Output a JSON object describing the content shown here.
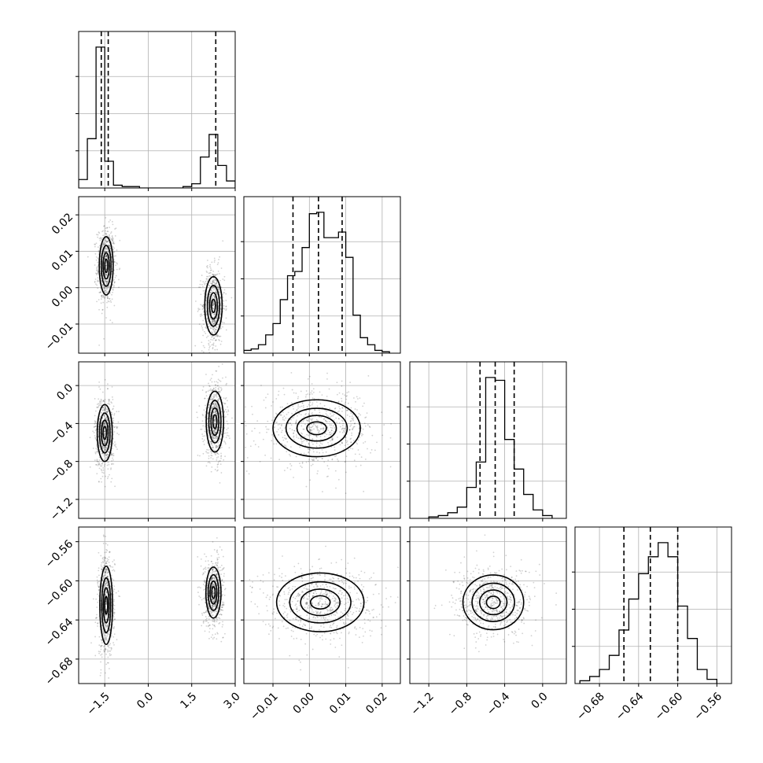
{
  "chart_data": {
    "type": "corner",
    "grid": true,
    "parameters": [
      {
        "range": [
          -2.4,
          3.0
        ],
        "ticks": [
          -1.5,
          0.0,
          1.5,
          3.0
        ],
        "tick_labels": [
          "−1.5",
          "0.0",
          "1.5",
          "3.0"
        ],
        "quantiles": [
          -1.62,
          -1.38,
          2.33
        ],
        "histogram": {
          "edges": [
            -2.4,
            -2.1,
            -1.8,
            -1.5,
            -1.2,
            -0.9,
            -0.6,
            -0.3,
            0.0,
            0.3,
            0.6,
            0.9,
            1.2,
            1.5,
            1.8,
            2.1,
            2.4,
            2.7,
            3.0
          ],
          "counts": [
            0.06,
            0.35,
            1.0,
            0.19,
            0.02,
            0.01,
            0.01,
            0.0,
            0.0,
            0.0,
            0.0,
            0.0,
            0.01,
            0.03,
            0.22,
            0.38,
            0.16,
            0.05
          ]
        }
      },
      {
        "range": [
          -0.018,
          0.025
        ],
        "ticks": [
          -0.01,
          0.0,
          0.01,
          0.02
        ],
        "tick_labels": [
          "−0.01",
          "0.00",
          "0.01",
          "0.02"
        ],
        "quantiles": [
          -0.0045,
          0.0025,
          0.009
        ],
        "histogram": {
          "edges": [
            -0.018,
            -0.016,
            -0.014,
            -0.012,
            -0.01,
            -0.008,
            -0.006,
            -0.004,
            -0.002,
            0.0,
            0.002,
            0.004,
            0.006,
            0.008,
            0.01,
            0.012,
            0.014,
            0.016,
            0.018,
            0.02,
            0.022
          ],
          "counts": [
            0.02,
            0.03,
            0.06,
            0.13,
            0.21,
            0.38,
            0.55,
            0.58,
            0.75,
            0.99,
            1.0,
            0.82,
            0.82,
            0.86,
            0.68,
            0.27,
            0.11,
            0.06,
            0.02,
            0.01
          ]
        }
      },
      {
        "range": [
          -1.4,
          0.25
        ],
        "ticks": [
          -1.2,
          -0.8,
          -0.4,
          0.0
        ],
        "tick_labels": [
          "−1.2",
          "−0.8",
          "−0.4",
          "0.0"
        ],
        "quantiles": [
          -0.66,
          -0.5,
          -0.3
        ],
        "histogram": {
          "edges": [
            -1.2,
            -1.1,
            -1.0,
            -0.9,
            -0.8,
            -0.7,
            -0.6,
            -0.5,
            -0.4,
            -0.3,
            -0.2,
            -0.1,
            0.0,
            0.1
          ],
          "counts": [
            0.01,
            0.02,
            0.04,
            0.08,
            0.22,
            0.4,
            1.0,
            0.98,
            0.56,
            0.35,
            0.17,
            0.06,
            0.02
          ]
        }
      },
      {
        "range": [
          -0.705,
          -0.545
        ],
        "ticks": [
          -0.68,
          -0.64,
          -0.6,
          -0.56
        ],
        "tick_labels": [
          "−0.68",
          "−0.64",
          "−0.60",
          "−0.56"
        ],
        "quantiles": [
          -0.655,
          -0.628,
          -0.6
        ],
        "histogram": {
          "edges": [
            -0.7,
            -0.69,
            -0.68,
            -0.67,
            -0.66,
            -0.65,
            -0.64,
            -0.63,
            -0.62,
            -0.61,
            -0.6,
            -0.59,
            -0.58,
            -0.57,
            -0.56
          ],
          "counts": [
            0.02,
            0.05,
            0.1,
            0.2,
            0.38,
            0.6,
            0.78,
            0.9,
            1.0,
            0.9,
            0.55,
            0.32,
            0.1,
            0.03
          ]
        }
      }
    ],
    "joint_modes": {
      "1-0": [
        {
          "center": [
            -1.45,
            0.006
          ],
          "sd": [
            0.12,
            0.004
          ]
        },
        {
          "center": [
            2.25,
            -0.005
          ],
          "sd": [
            0.15,
            0.004
          ]
        }
      ],
      "2-0": [
        {
          "center": [
            -1.5,
            -0.5
          ],
          "sd": [
            0.13,
            0.15
          ]
        },
        {
          "center": [
            2.3,
            -0.38
          ],
          "sd": [
            0.15,
            0.16
          ]
        }
      ],
      "2-1": [
        {
          "center": [
            0.002,
            -0.45
          ],
          "sd": [
            0.006,
            0.15
          ]
        }
      ],
      "3-0": [
        {
          "center": [
            -1.45,
            -0.625
          ],
          "sd": [
            0.11,
            0.02
          ]
        },
        {
          "center": [
            2.25,
            -0.612
          ],
          "sd": [
            0.13,
            0.013
          ]
        }
      ],
      "3-1": [
        {
          "center": [
            0.003,
            -0.622
          ],
          "sd": [
            0.006,
            0.015
          ]
        }
      ],
      "3-2": [
        {
          "center": [
            -0.52,
            -0.622
          ],
          "sd": [
            0.16,
            0.014
          ]
        }
      ]
    }
  }
}
